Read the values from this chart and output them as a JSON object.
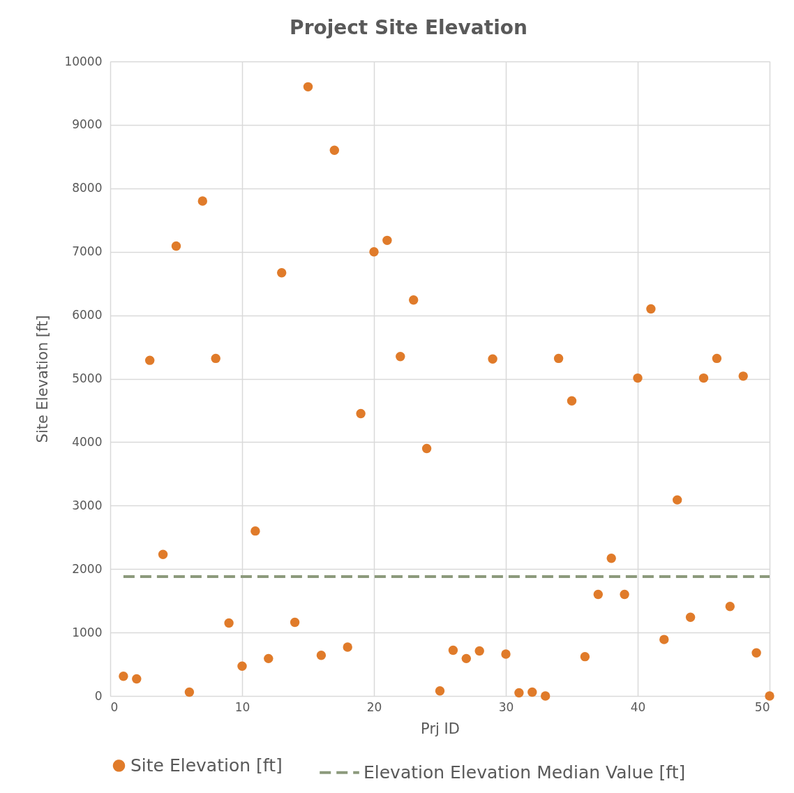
{
  "chart_data": {
    "type": "scatter",
    "title": "Project Site Elevation",
    "xlabel": "Prj ID",
    "ylabel": "Site Elevation [ft]",
    "x": [
      1,
      2,
      3,
      4,
      5,
      6,
      7,
      8,
      9,
      10,
      11,
      12,
      13,
      14,
      15,
      16,
      17,
      18,
      19,
      20,
      21,
      22,
      23,
      24,
      25,
      26,
      27,
      28,
      29,
      30,
      31,
      32,
      33,
      34,
      35,
      36,
      37,
      38,
      39,
      40,
      41,
      42,
      43,
      44,
      45,
      46,
      47,
      48,
      49,
      50
    ],
    "series": [
      {
        "name": "Site Elevation [ft]",
        "color": "#e07b2a",
        "marker": "circle",
        "values": [
          310,
          270,
          5290,
          2230,
          7090,
          60,
          7800,
          5320,
          1150,
          470,
          2600,
          590,
          6670,
          1160,
          9600,
          640,
          8600,
          770,
          4450,
          7000,
          7180,
          5350,
          6240,
          3900,
          80,
          720,
          590,
          710,
          5310,
          660,
          50,
          60,
          0,
          5320,
          4650,
          620,
          1600,
          2170,
          1600,
          5010,
          6100,
          890,
          3090,
          1240,
          5010,
          5320,
          1410,
          5040,
          680,
          0
        ]
      },
      {
        "name": "Elevation Elevation Median Value [ft]",
        "type": "line",
        "color": "#8c9a7c",
        "marker": "none",
        "line_style": "dashed",
        "x": [
          1,
          50
        ],
        "values": [
          1880,
          1880
        ]
      }
    ],
    "xlim": [
      0,
      50
    ],
    "ylim": [
      0,
      10000
    ],
    "xticks": [
      0,
      10,
      20,
      30,
      40,
      50
    ],
    "yticks": [
      0,
      1000,
      2000,
      3000,
      4000,
      5000,
      6000,
      7000,
      8000,
      9000,
      10000
    ],
    "grid": true,
    "legend": "bottom"
  }
}
